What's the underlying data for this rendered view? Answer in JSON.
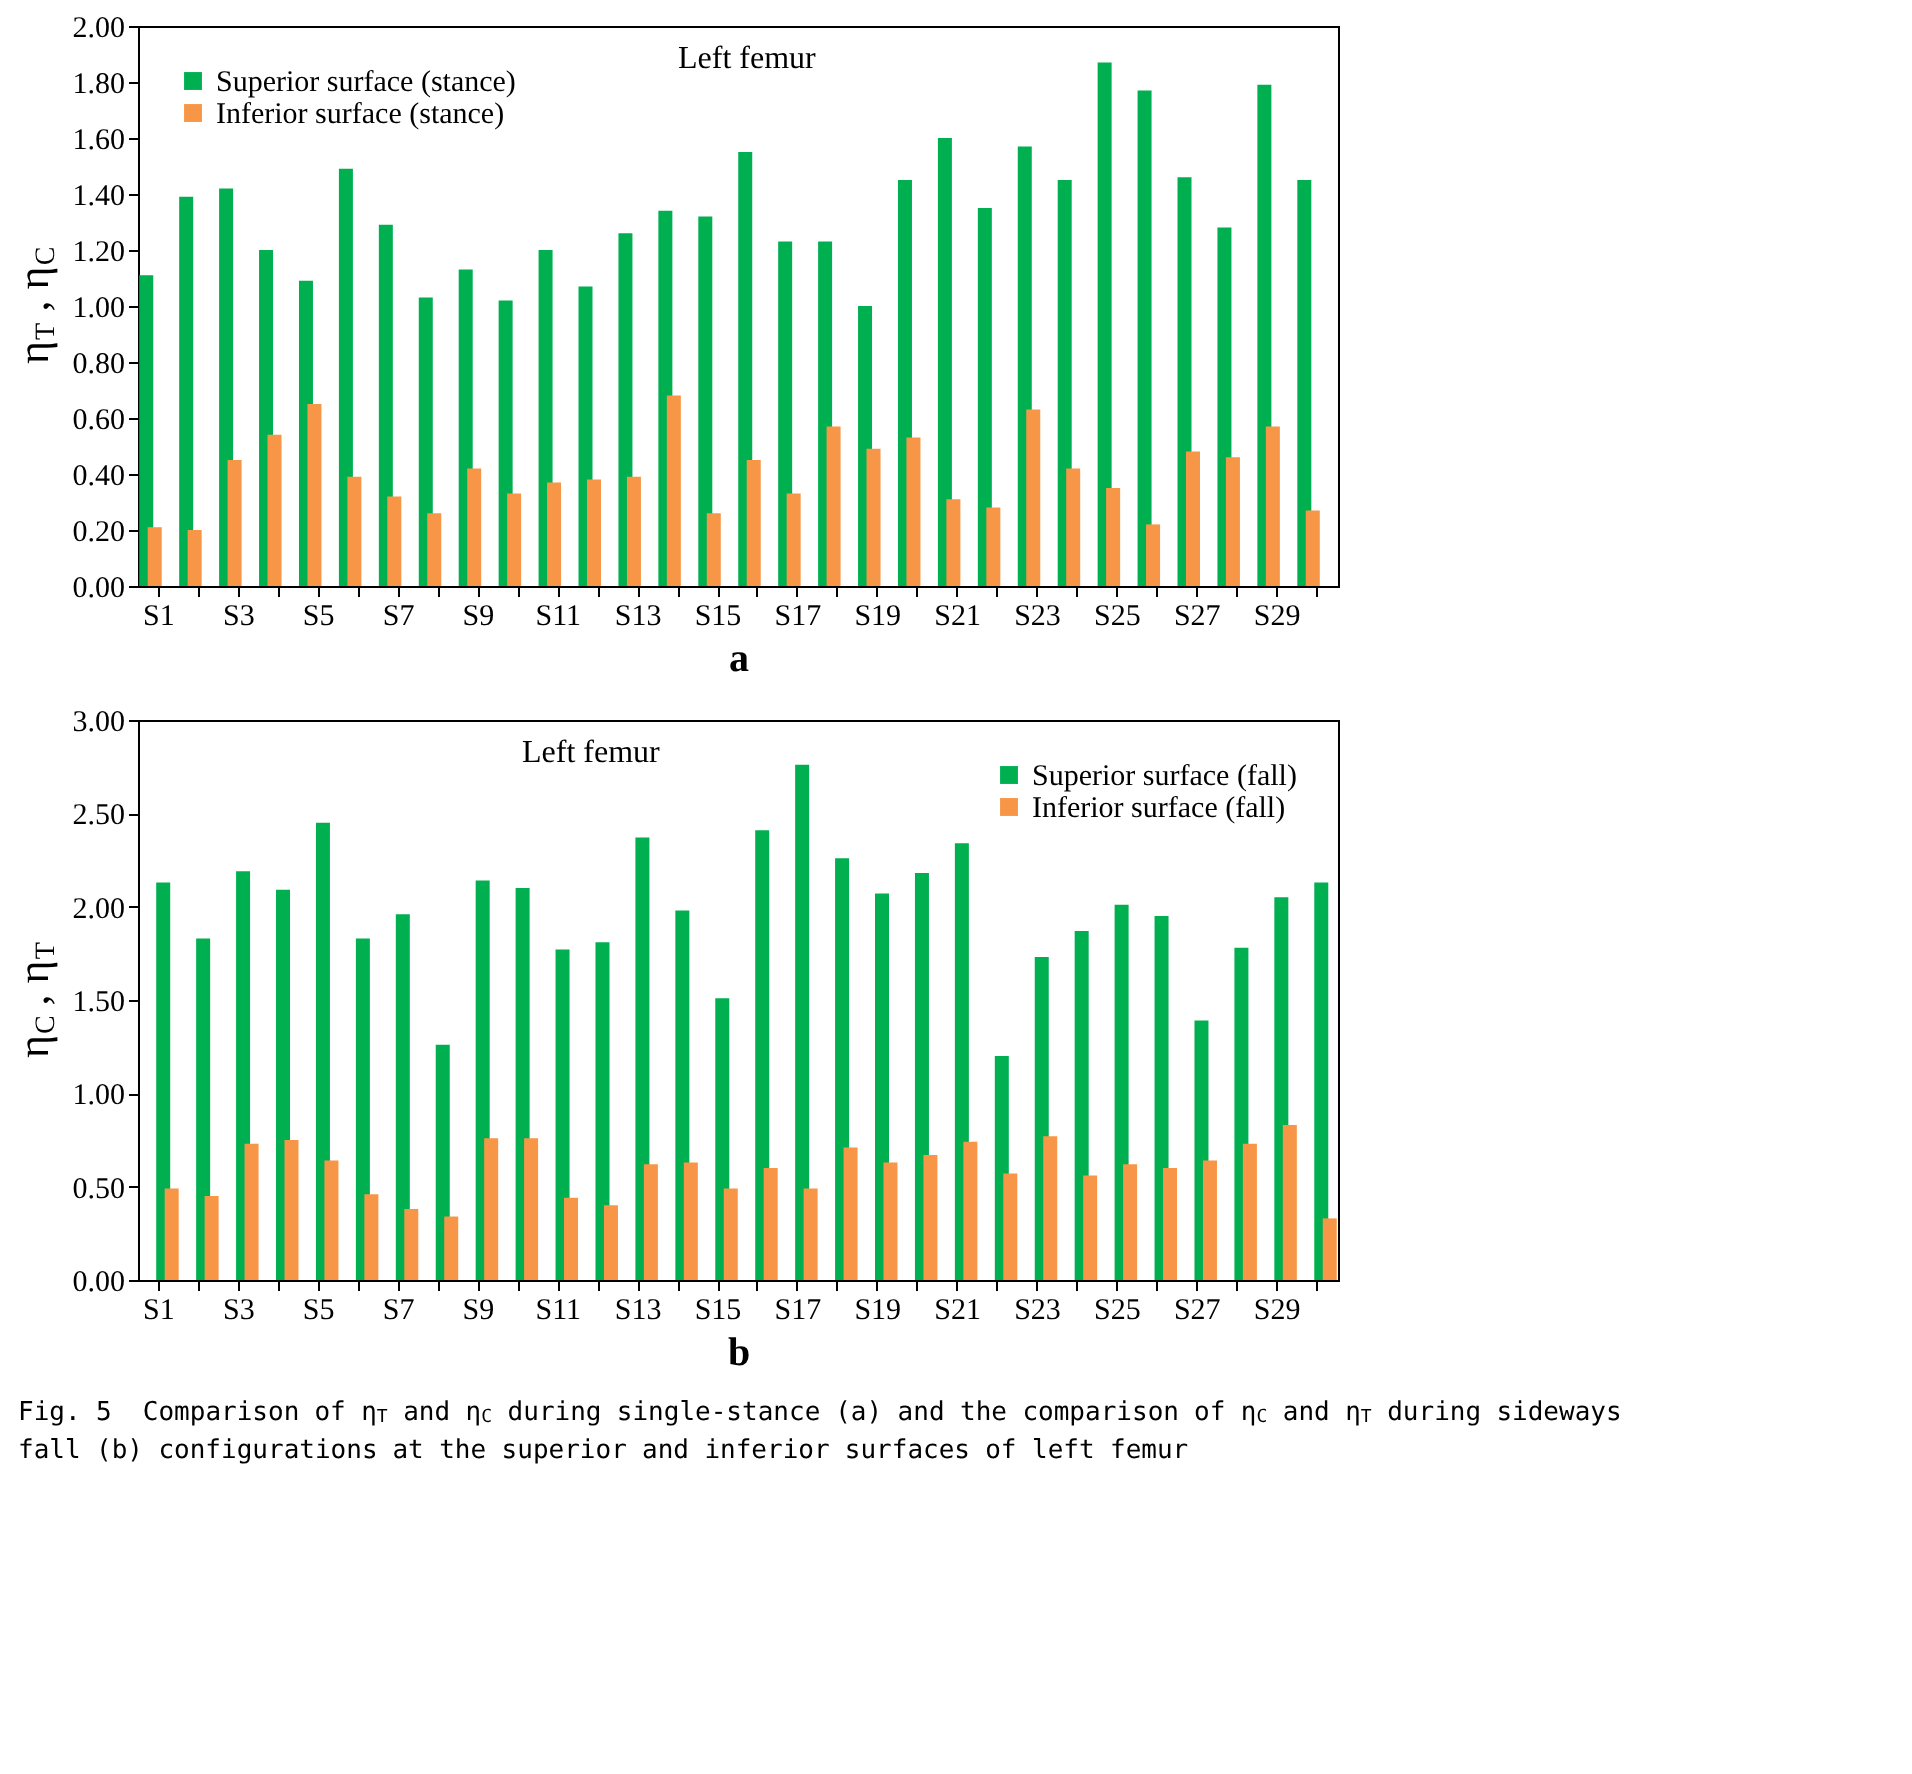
{
  "chart_data": [
    {
      "type": "bar",
      "xlabel": "a",
      "ylabel": "η$_{T}$ , η$_{C}$",
      "categories": [
        "S1",
        null,
        "S3",
        null,
        "S5",
        null,
        "S7",
        null,
        "S9",
        null,
        "S11",
        null,
        "S13",
        null,
        "S15",
        null,
        "S17",
        null,
        "S19",
        null,
        "S21",
        null,
        "S23",
        null,
        "S25",
        null,
        "S27",
        null,
        "S29",
        null
      ],
      "series": [
        {
          "name": "Superior surface (stance)",
          "color": "#00b050",
          "values": [
            1.11,
            1.39,
            1.42,
            1.2,
            1.09,
            1.49,
            1.29,
            1.03,
            1.13,
            1.02,
            1.2,
            1.07,
            1.26,
            1.34,
            1.32,
            1.55,
            1.23,
            1.23,
            1.0,
            1.45,
            1.6,
            1.35,
            1.57,
            1.45,
            1.87,
            1.77,
            1.46,
            1.28,
            1.79,
            1.45
          ]
        },
        {
          "name": "Inferior surface (stance)",
          "color": "#f79646",
          "values": [
            0.21,
            0.2,
            0.45,
            0.54,
            0.65,
            0.39,
            0.32,
            0.26,
            0.42,
            0.33,
            0.37,
            0.38,
            0.39,
            0.68,
            0.26,
            0.45,
            0.33,
            0.57,
            0.49,
            0.53,
            0.31,
            0.28,
            0.63,
            0.42,
            0.35,
            0.22,
            0.48,
            0.46,
            0.57,
            0.27
          ]
        }
      ],
      "ylim": [
        0,
        2
      ],
      "yticks": [
        {
          "value": 0,
          "label": "0.00"
        },
        {
          "value": 0.2,
          "label": "0.20"
        },
        {
          "value": 0.4,
          "label": "0.40"
        },
        {
          "value": 0.6,
          "label": "0.60"
        },
        {
          "value": 0.8,
          "label": "0.80"
        },
        {
          "value": 1,
          "label": "1.00"
        },
        {
          "value": 1.2,
          "label": "1.20"
        },
        {
          "value": 1.4,
          "label": "1.40"
        },
        {
          "value": 1.6,
          "label": "1.60"
        },
        {
          "value": 1.8,
          "label": "1.80"
        },
        {
          "value": 2,
          "label": "2.00"
        }
      ],
      "legend": "top left",
      "grid": false,
      "annotations": [
        "Left femur"
      ]
    },
    {
      "type": "bar",
      "xlabel": "b",
      "ylabel": "η$_{C}$ , η$_{T}$",
      "categories": [
        "S1",
        null,
        "S3",
        null,
        "S5",
        null,
        "S7",
        null,
        "S9",
        null,
        "S11",
        null,
        "S13",
        null,
        "S15",
        null,
        "S17",
        null,
        "S19",
        null,
        "S21",
        null,
        "S23",
        null,
        "S25",
        null,
        "S27",
        null,
        "S29",
        null
      ],
      "series": [
        {
          "name": "Superior surface (fall)",
          "color": "#00b050",
          "values": [
            2.13,
            1.83,
            2.19,
            2.09,
            2.45,
            1.83,
            1.96,
            1.26,
            2.14,
            2.1,
            1.77,
            1.81,
            2.37,
            1.98,
            1.51,
            2.41,
            2.76,
            2.26,
            2.07,
            2.18,
            2.34,
            1.2,
            1.73,
            1.87,
            2.01,
            1.95,
            1.39,
            1.78,
            2.05,
            2.13
          ]
        },
        {
          "name": "Inferior surface (fall)",
          "color": "#f79646",
          "values": [
            0.49,
            0.45,
            0.73,
            0.75,
            0.64,
            0.46,
            0.38,
            0.34,
            0.76,
            0.76,
            0.44,
            0.4,
            0.62,
            0.63,
            0.49,
            0.6,
            0.49,
            0.71,
            0.63,
            0.67,
            0.74,
            0.57,
            0.77,
            0.56,
            0.62,
            0.6,
            0.64,
            0.73,
            0.83,
            0.33
          ]
        }
      ],
      "ylim": [
        0,
        3
      ],
      "yticks": [
        {
          "value": 0,
          "label": "0.00"
        },
        {
          "value": 0.5,
          "label": "0.50"
        },
        {
          "value": 1,
          "label": "1.00"
        },
        {
          "value": 1.5,
          "label": "1.50"
        },
        {
          "value": 2,
          "label": "2.00"
        },
        {
          "value": 2.5,
          "label": "2.50"
        },
        {
          "value": 3,
          "label": "3.00"
        }
      ],
      "legend": "top right",
      "grid": false,
      "annotations": [
        "Left femur",
        "Fig. 5  Comparison of η$_{T}$ and η$_{C}$ during single-stance (a) and the comparison of η$_{C}$ and η$_{T}$ during sideways fall (b) configurations at the superior and inferior surfaces of left femur"
      ]
    }
  ]
}
